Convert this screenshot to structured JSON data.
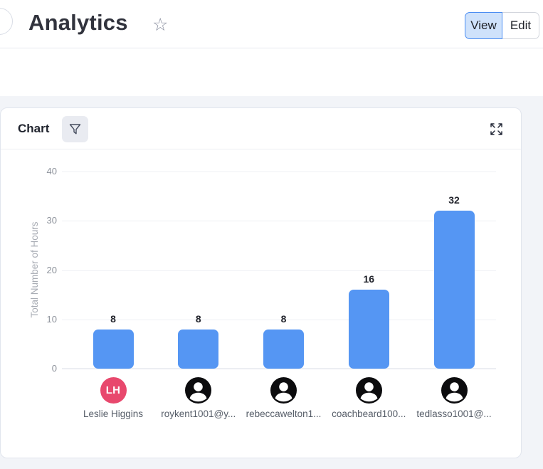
{
  "header": {
    "title": "Analytics",
    "favorite_icon": "☆",
    "view_label": "View",
    "edit_label": "Edit"
  },
  "card": {
    "title": "Chart"
  },
  "chart_data": {
    "type": "bar",
    "title": "",
    "xlabel": "",
    "ylabel": "Total Number of Hours",
    "ylim": [
      0,
      40
    ],
    "yticks": [
      0,
      10,
      20,
      30,
      40
    ],
    "grid": true,
    "legend": "none",
    "bar_color": "#5596f3",
    "categories": [
      "Leslie Higgins",
      "roykent1001@y...",
      "rebeccawelton1...",
      "coachbeard100...",
      "tedlasso1001@..."
    ],
    "values": [
      8,
      8,
      8,
      16,
      32
    ],
    "avatars": [
      {
        "type": "initials",
        "initials": "LH",
        "color": "#e8486d"
      },
      {
        "type": "person",
        "color": "#0c0c0e"
      },
      {
        "type": "person",
        "color": "#0c0c0e"
      },
      {
        "type": "person",
        "color": "#0c0c0e"
      },
      {
        "type": "person",
        "color": "#0c0c0e"
      }
    ]
  }
}
